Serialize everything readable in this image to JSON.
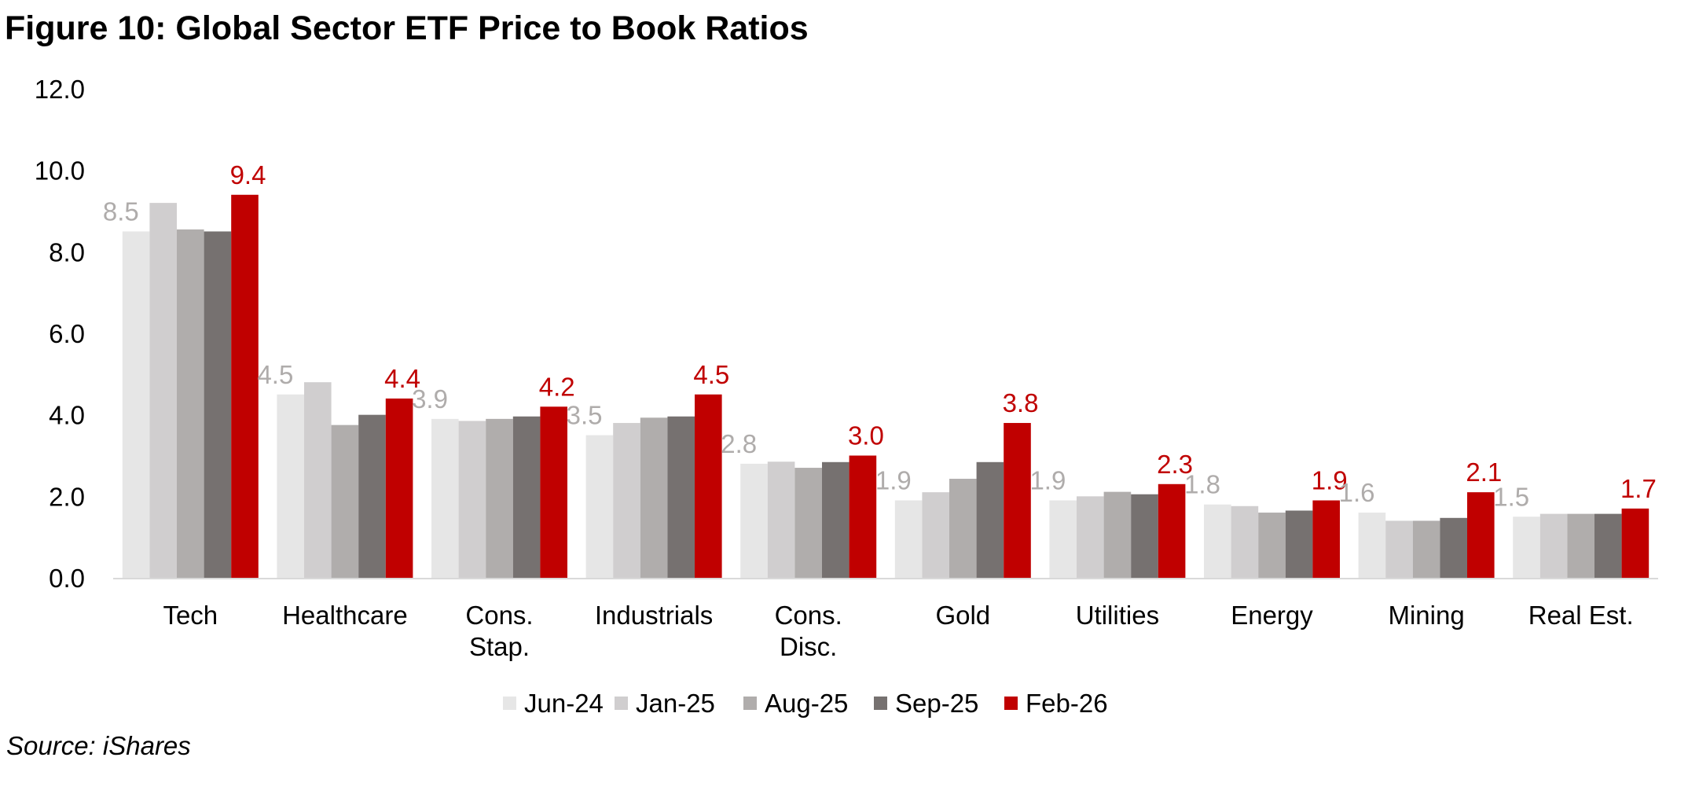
{
  "title": "Figure 10: Global Sector ETF Price to Book Ratios",
  "source": "Source: iShares",
  "chart_data": {
    "type": "bar",
    "title": "Figure 10: Global Sector ETF Price to Book Ratios",
    "xlabel": "",
    "ylabel": "",
    "ylim": [
      0,
      12
    ],
    "yticks": [
      "0.0",
      "2.0",
      "4.0",
      "6.0",
      "8.0",
      "10.0",
      "12.0"
    ],
    "grid": false,
    "legend_position": "bottom",
    "categories": [
      "Tech",
      "Healthcare",
      "Cons. Stap.",
      "Industrials",
      "Cons. Disc.",
      "Gold",
      "Utilities",
      "Energy",
      "Mining",
      "Real Est."
    ],
    "series": [
      {
        "name": "Jun-24",
        "color": "#e6e6e6",
        "values": [
          8.5,
          4.5,
          3.9,
          3.5,
          2.8,
          1.9,
          1.9,
          1.8,
          1.6,
          1.5
        ],
        "labeled": true,
        "label_color": "#afacab"
      },
      {
        "name": "Jan-25",
        "color": "#d0cecf",
        "values": [
          9.2,
          4.8,
          3.85,
          3.8,
          2.85,
          2.1,
          2.0,
          1.76,
          1.4,
          1.57
        ],
        "labeled": false
      },
      {
        "name": "Aug-25",
        "color": "#b0adac",
        "values": [
          8.55,
          3.75,
          3.9,
          3.93,
          2.7,
          2.43,
          2.11,
          1.6,
          1.4,
          1.57
        ],
        "labeled": false
      },
      {
        "name": "Sep-25",
        "color": "#767170",
        "values": [
          8.5,
          4.0,
          3.96,
          3.96,
          2.84,
          2.84,
          2.05,
          1.65,
          1.47,
          1.57
        ],
        "labeled": false
      },
      {
        "name": "Feb-26",
        "color": "#c00000",
        "values": [
          9.4,
          4.4,
          4.2,
          4.5,
          3.0,
          3.8,
          2.3,
          1.9,
          2.1,
          1.7
        ],
        "labeled": true,
        "label_color": "#c00000"
      }
    ]
  }
}
